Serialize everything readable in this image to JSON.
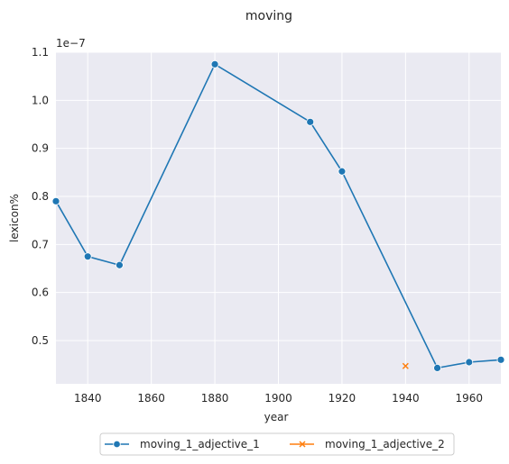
{
  "chart_data": {
    "type": "line",
    "title": "moving",
    "xlabel": "year",
    "ylabel": "lexicon%",
    "y_offset_label": "1e−7",
    "xlim": [
      1830,
      1970
    ],
    "ylim": [
      0.41,
      1.1
    ],
    "xticks": [
      1840,
      1860,
      1880,
      1900,
      1920,
      1940,
      1960
    ],
    "yticks": [
      0.5,
      0.6,
      0.7,
      0.8,
      0.9,
      1.0,
      1.1
    ],
    "ytick_labels": [
      "0.5",
      "0.6",
      "0.7",
      "0.8",
      "0.9",
      "1.0",
      "1.1"
    ],
    "grid": true,
    "legend_placement": "bottom-center",
    "series": [
      {
        "name": "moving_1_adjective_1",
        "color": "#1f77b4",
        "marker": "circle",
        "x": [
          1830,
          1840,
          1850,
          1880,
          1910,
          1920,
          1950,
          1960,
          1970
        ],
        "y": [
          0.79,
          0.675,
          0.657,
          1.075,
          0.955,
          0.852,
          0.443,
          0.455,
          0.46
        ]
      },
      {
        "name": "moving_1_adjective_2",
        "color": "#ff7f0e",
        "marker": "x",
        "x": [
          1940
        ],
        "y": [
          0.447
        ]
      }
    ]
  }
}
